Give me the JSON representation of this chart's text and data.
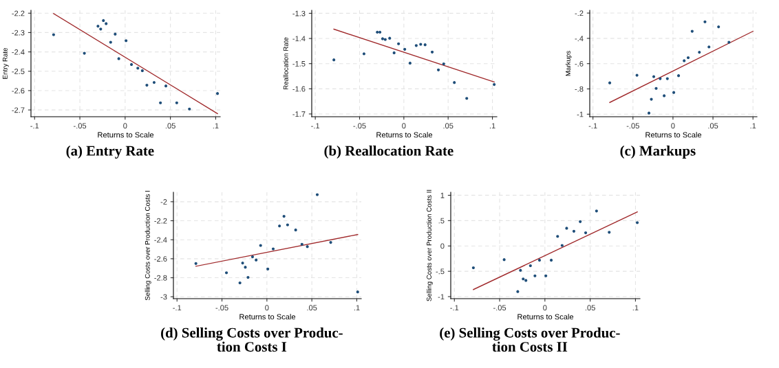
{
  "chart_data": [
    {
      "type": "scatter",
      "title": "(a) Entry Rate",
      "xlabel": "Returns to Scale",
      "ylabel": "Entry Rate",
      "grid": true,
      "xlim": [
        -0.104,
        0.105
      ],
      "xticks": [
        {
          "value": -0.1,
          "label": "-.1"
        },
        {
          "value": -0.05,
          "label": "-.05"
        },
        0,
        {
          "value": 0.05,
          "label": ".05"
        },
        {
          "value": 0.1,
          "label": ".1"
        }
      ],
      "ylim": [
        -2.735,
        -2.185
      ],
      "yticks": [
        -2.2,
        -2.3,
        -2.4,
        -2.5,
        -2.6,
        -2.7
      ],
      "series": [
        {
          "marker": "circle",
          "color": "#1f4e79",
          "x": [
            -0.079,
            -0.045,
            -0.03,
            -0.027,
            -0.024,
            -0.021,
            -0.016,
            -0.011,
            -0.007,
            0.001,
            0.007,
            0.014,
            0.019,
            0.024,
            0.032,
            0.039,
            0.045,
            0.057,
            0.071,
            0.102
          ],
          "values": [
            -2.311,
            -2.407,
            -2.267,
            -2.282,
            -2.238,
            -2.254,
            -2.35,
            -2.308,
            -2.435,
            -2.342,
            -2.465,
            -2.484,
            -2.497,
            -2.572,
            -2.558,
            -2.663,
            -2.576,
            -2.663,
            -2.695,
            -2.615
          ]
        },
        {
          "type": "line",
          "color": "#a0292b",
          "x": [
            -0.079,
            0.102
          ],
          "values": [
            -2.202,
            -2.719
          ]
        }
      ]
    },
    {
      "type": "scatter",
      "title": "(b) Reallocation Rate",
      "xlabel": "Returns to Scale",
      "ylabel": "Reallocation Rate",
      "grid": true,
      "xlim": [
        -0.104,
        0.105
      ],
      "xticks": [
        {
          "value": -0.1,
          "label": "-.1"
        },
        {
          "value": -0.05,
          "label": "-.05"
        },
        0,
        {
          "value": 0.05,
          "label": ".05"
        },
        {
          "value": 0.1,
          "label": ".1"
        }
      ],
      "ylim": [
        -1.711,
        -1.288
      ],
      "yticks": [
        -1.3,
        -1.4,
        -1.5,
        -1.6,
        -1.7
      ],
      "series": [
        {
          "marker": "circle",
          "color": "#1f4e79",
          "x": [
            -0.079,
            -0.045,
            -0.03,
            -0.027,
            -0.024,
            -0.021,
            -0.016,
            -0.011,
            -0.006,
            0.001,
            0.007,
            0.014,
            0.019,
            0.024,
            0.032,
            0.039,
            0.045,
            0.057,
            0.071,
            0.102
          ],
          "values": [
            -1.485,
            -1.461,
            -1.375,
            -1.375,
            -1.401,
            -1.404,
            -1.399,
            -1.457,
            -1.421,
            -1.443,
            -1.498,
            -1.428,
            -1.423,
            -1.425,
            -1.454,
            -1.525,
            -1.501,
            -1.575,
            -1.638,
            -1.583
          ]
        },
        {
          "type": "line",
          "color": "#a0292b",
          "x": [
            -0.079,
            0.102
          ],
          "values": [
            -1.363,
            -1.573
          ]
        }
      ]
    },
    {
      "type": "scatter",
      "title": "(c) Markups",
      "xlabel": "Returns to Scale",
      "ylabel": "Markups",
      "grid": true,
      "xlim": [
        -0.104,
        0.105
      ],
      "xticks": [
        {
          "value": -0.1,
          "label": "-.1"
        },
        {
          "value": -0.05,
          "label": "-.05"
        },
        0,
        {
          "value": 0.05,
          "label": ".05"
        },
        {
          "value": 0.1,
          "label": ".1"
        }
      ],
      "ylim": [
        -1.02,
        -0.178
      ],
      "yticks": [
        {
          "value": -0.2,
          "label": "-.2"
        },
        {
          "value": -0.4,
          "label": "-.4"
        },
        {
          "value": -0.6,
          "label": "-.6"
        },
        {
          "value": -0.8,
          "label": "-.8"
        },
        -1
      ],
      "series": [
        {
          "marker": "circle",
          "color": "#1f4e79",
          "x": [
            -0.079,
            -0.045,
            -0.03,
            -0.027,
            -0.024,
            -0.021,
            -0.016,
            -0.011,
            -0.007,
            0.001,
            0.007,
            0.014,
            0.019,
            0.024,
            0.033,
            0.04,
            0.045,
            0.057,
            0.07
          ],
          "values": [
            -0.752,
            -0.692,
            -0.991,
            -0.882,
            -0.703,
            -0.796,
            -0.719,
            -0.854,
            -0.719,
            -0.828,
            -0.695,
            -0.577,
            -0.553,
            -0.344,
            -0.51,
            -0.269,
            -0.468,
            -0.309,
            -0.431
          ]
        },
        {
          "type": "line",
          "color": "#a0292b",
          "x": [
            -0.079,
            0.1
          ],
          "values": [
            -0.907,
            -0.344
          ]
        }
      ]
    },
    {
      "type": "scatter",
      "title": "(d) Selling Costs over Produc-\ntion Costs I",
      "xlabel": "Returns to Scale",
      "ylabel": "Selling Costs over Production Costs I",
      "grid": true,
      "xlim": [
        -0.104,
        0.105
      ],
      "xticks": [
        {
          "value": -0.1,
          "label": "-.1"
        },
        {
          "value": -0.05,
          "label": "-.05"
        },
        0,
        {
          "value": 0.05,
          "label": ".05"
        },
        {
          "value": 0.1,
          "label": ".1"
        }
      ],
      "ylim": [
        -3.02,
        -1.9
      ],
      "yticks": [
        -2,
        -2.2,
        -2.4,
        -2.6,
        -2.8,
        -3
      ],
      "series": [
        {
          "marker": "circle",
          "color": "#1f4e79",
          "x": [
            -0.079,
            -0.045,
            -0.03,
            -0.027,
            -0.024,
            -0.021,
            -0.016,
            -0.012,
            -0.007,
            0.001,
            0.007,
            0.014,
            0.019,
            0.023,
            0.032,
            0.039,
            0.045,
            0.056,
            0.071,
            0.101
          ],
          "values": [
            -2.65,
            -2.747,
            -2.854,
            -2.645,
            -2.689,
            -2.796,
            -2.579,
            -2.613,
            -2.46,
            -2.708,
            -2.496,
            -2.255,
            -2.153,
            -2.243,
            -2.297,
            -2.448,
            -2.472,
            -1.925,
            -2.428,
            -2.949
          ]
        },
        {
          "type": "line",
          "color": "#a0292b",
          "x": [
            -0.079,
            0.101
          ],
          "values": [
            -2.679,
            -2.345
          ]
        }
      ]
    },
    {
      "type": "scatter",
      "title": "(e) Selling Costs over Produc-\ntion Costs II",
      "xlabel": "Returns to Scale",
      "ylabel": "Selling Costs over Production Costs II",
      "grid": true,
      "xlim": [
        -0.104,
        0.105
      ],
      "xticks": [
        {
          "value": -0.1,
          "label": "-.1"
        },
        {
          "value": -0.05,
          "label": "-.05"
        },
        0,
        {
          "value": 0.05,
          "label": ".05"
        },
        {
          "value": 0.1,
          "label": ".1"
        }
      ],
      "ylim": [
        -1.04,
        1.06
      ],
      "yticks": [
        1,
        {
          "value": 0.5,
          "label": ".5"
        },
        0,
        {
          "value": -0.5,
          "label": "-.5"
        },
        -1
      ],
      "series": [
        {
          "marker": "circle",
          "color": "#1f4e79",
          "x": [
            -0.079,
            -0.045,
            -0.03,
            -0.027,
            -0.024,
            -0.021,
            -0.016,
            -0.011,
            -0.006,
            0.001,
            0.007,
            0.014,
            0.019,
            0.024,
            0.032,
            0.039,
            0.045,
            0.057,
            0.071,
            0.102
          ],
          "values": [
            -0.43,
            -0.27,
            -0.9,
            -0.48,
            -0.65,
            -0.68,
            -0.39,
            -0.59,
            -0.28,
            -0.59,
            -0.28,
            0.19,
            0.01,
            0.35,
            0.29,
            0.48,
            0.26,
            0.69,
            0.27,
            0.46
          ]
        },
        {
          "type": "line",
          "color": "#a0292b",
          "x": [
            -0.079,
            0.102
          ],
          "values": [
            -0.86,
            0.67
          ]
        }
      ]
    }
  ]
}
